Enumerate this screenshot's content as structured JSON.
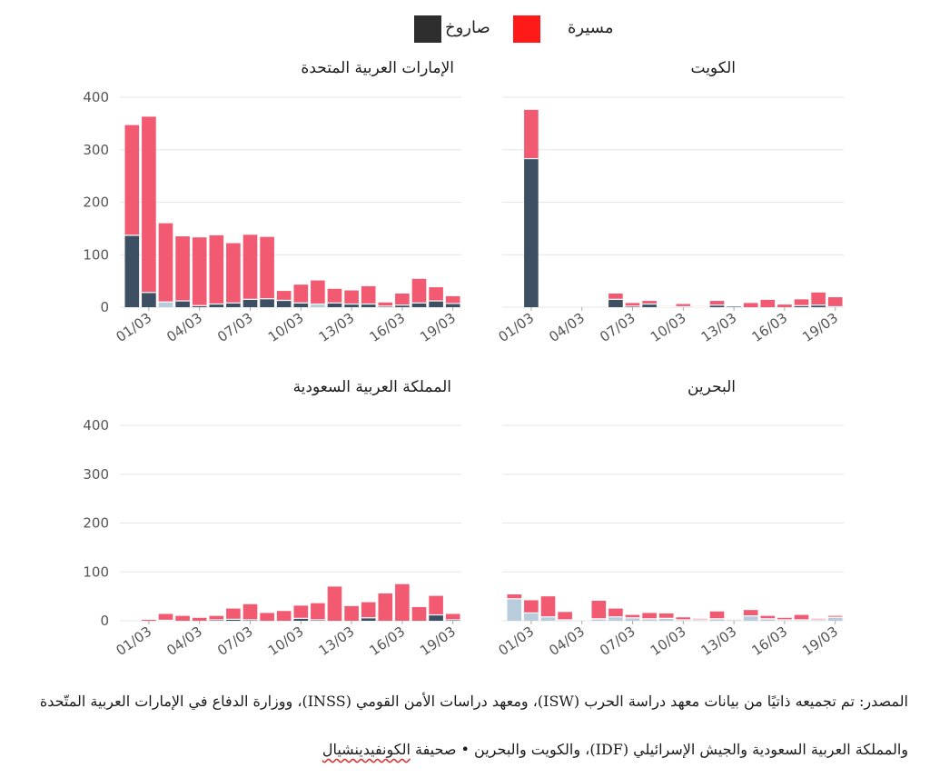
{
  "legend": {
    "items": [
      {
        "label": "صاروخ",
        "color": "#2e2e2e"
      },
      {
        "label": "مسيرة",
        "color": "#ff1a1a"
      }
    ]
  },
  "series_colors": {
    "missile": "#3d4f63",
    "missile_light": "#b8ccdc",
    "drone": "#f25a72",
    "grid": "#e6e6e6",
    "axis_text": "#555555"
  },
  "chart_data": [
    {
      "type": "bar",
      "stacked": true,
      "title": "الإمارات العربية المتحدة",
      "ylim": [
        0,
        400
      ],
      "yticks": [
        0,
        100,
        200,
        300,
        400
      ],
      "xtick_labels": [
        "01/03",
        "04/03",
        "07/03",
        "10/03",
        "13/03",
        "16/03",
        "19/03"
      ],
      "categories": [
        "28/02",
        "01/03",
        "02/03",
        "03/03",
        "04/03",
        "05/03",
        "06/03",
        "07/03",
        "08/03",
        "09/03",
        "10/03",
        "11/03",
        "12/03",
        "13/03",
        "14/03",
        "15/03",
        "16/03",
        "17/03",
        "18/03",
        "19/03"
      ],
      "series": [
        {
          "name": "صاروخ",
          "values": [
            137,
            28,
            10,
            12,
            3,
            6,
            8,
            15,
            16,
            13,
            8,
            6,
            8,
            6,
            6,
            2,
            4,
            8,
            12,
            7
          ]
        },
        {
          "name": "مسيرة",
          "values": [
            210,
            335,
            150,
            123,
            130,
            131,
            114,
            123,
            118,
            18,
            35,
            45,
            27,
            26,
            34,
            7,
            22,
            46,
            26,
            14
          ]
        }
      ],
      "light_missile": [
        false,
        false,
        true,
        false,
        false,
        false,
        false,
        false,
        false,
        false,
        false,
        true,
        false,
        false,
        false,
        false,
        false,
        false,
        false,
        false
      ]
    },
    {
      "type": "bar",
      "stacked": true,
      "title": "الكويت",
      "ylim": [
        0,
        400
      ],
      "yticks": [
        0,
        100,
        200,
        300,
        400
      ],
      "xtick_labels": [
        "01/03",
        "04/03",
        "07/03",
        "10/03",
        "13/03",
        "16/03",
        "19/03"
      ],
      "categories": [
        "28/02",
        "01/03",
        "02/03",
        "03/03",
        "04/03",
        "05/03",
        "06/03",
        "07/03",
        "08/03",
        "09/03",
        "10/03",
        "11/03",
        "12/03",
        "13/03",
        "14/03",
        "15/03",
        "16/03",
        "17/03",
        "18/03",
        "19/03"
      ],
      "series": [
        {
          "name": "صاروخ",
          "values": [
            0,
            283,
            0,
            0,
            0,
            0,
            15,
            2,
            6,
            1,
            1,
            1,
            4,
            1,
            0,
            0,
            0,
            3,
            4,
            1
          ]
        },
        {
          "name": "مسيرة",
          "values": [
            0,
            93,
            0,
            0,
            0,
            0,
            11,
            6,
            6,
            1,
            5,
            1,
            8,
            0,
            8,
            14,
            5,
            12,
            24,
            18
          ]
        }
      ],
      "light_missile": [
        false,
        false,
        false,
        false,
        false,
        false,
        false,
        false,
        false,
        false,
        false,
        false,
        false,
        false,
        false,
        false,
        false,
        false,
        false,
        false
      ]
    },
    {
      "type": "bar",
      "stacked": true,
      "title": "المملكة العربية السعودية",
      "ylim": [
        0,
        400
      ],
      "yticks": [
        0,
        100,
        200,
        300,
        400
      ],
      "xtick_labels": [
        "01/03",
        "04/03",
        "07/03",
        "10/03",
        "13/03",
        "16/03",
        "19/03"
      ],
      "categories": [
        "28/02",
        "01/03",
        "02/03",
        "03/03",
        "04/03",
        "05/03",
        "06/03",
        "07/03",
        "08/03",
        "09/03",
        "10/03",
        "11/03",
        "12/03",
        "13/03",
        "14/03",
        "15/03",
        "16/03",
        "17/03",
        "18/03",
        "19/03"
      ],
      "series": [
        {
          "name": "صاروخ",
          "values": [
            0,
            0,
            1,
            0,
            0,
            2,
            3,
            2,
            0,
            0,
            5,
            2,
            0,
            0,
            6,
            0,
            0,
            0,
            12,
            2
          ]
        },
        {
          "name": "مسيرة",
          "values": [
            0,
            2,
            13,
            10,
            6,
            8,
            22,
            32,
            16,
            20,
            26,
            34,
            70,
            30,
            32,
            56,
            75,
            28,
            39,
            12
          ]
        }
      ],
      "light_missile": [
        false,
        false,
        false,
        false,
        false,
        false,
        false,
        false,
        false,
        false,
        false,
        false,
        false,
        false,
        false,
        false,
        false,
        false,
        false,
        false
      ]
    },
    {
      "type": "bar",
      "stacked": true,
      "title": "البحرين",
      "ylim": [
        0,
        400
      ],
      "yticks": [
        0,
        100,
        200,
        300,
        400
      ],
      "xtick_labels": [
        "01/03",
        "04/03",
        "07/03",
        "10/03",
        "13/03",
        "16/03",
        "19/03"
      ],
      "categories": [
        "28/02",
        "01/03",
        "02/03",
        "03/03",
        "04/03",
        "05/03",
        "06/03",
        "07/03",
        "08/03",
        "09/03",
        "10/03",
        "11/03",
        "12/03",
        "13/03",
        "14/03",
        "15/03",
        "16/03",
        "17/03",
        "18/03",
        "19/03"
      ],
      "series": [
        {
          "name": "صاروخ",
          "values": [
            45,
            16,
            8,
            2,
            0,
            4,
            8,
            6,
            4,
            5,
            2,
            2,
            4,
            2,
            10,
            4,
            2,
            2,
            2,
            7
          ]
        },
        {
          "name": "مسيرة",
          "values": [
            9,
            26,
            42,
            16,
            0,
            37,
            17,
            6,
            12,
            10,
            5,
            2,
            15,
            1,
            12,
            6,
            4,
            10,
            2,
            3
          ]
        }
      ],
      "light_missile": [
        true,
        true,
        true,
        true,
        true,
        true,
        true,
        true,
        true,
        true,
        true,
        true,
        true,
        true,
        true,
        true,
        true,
        true,
        true,
        true
      ]
    }
  ],
  "source": {
    "line1": "المصدر: تم تجميعه ذاتيًا من بيانات معهد دراسة الحرب (ISW)، ومعهد دراسات الأمن القومي (INSS)، ووزارة الدفاع في الإمارات العربية المتّحدة",
    "line2_prefix": "والمملكة العربية السعودية والجيش الإسرائيلي (IDF)، والكويت والبحرين • صحيفة ",
    "line2_brand": "الكونفيدينشيال"
  }
}
